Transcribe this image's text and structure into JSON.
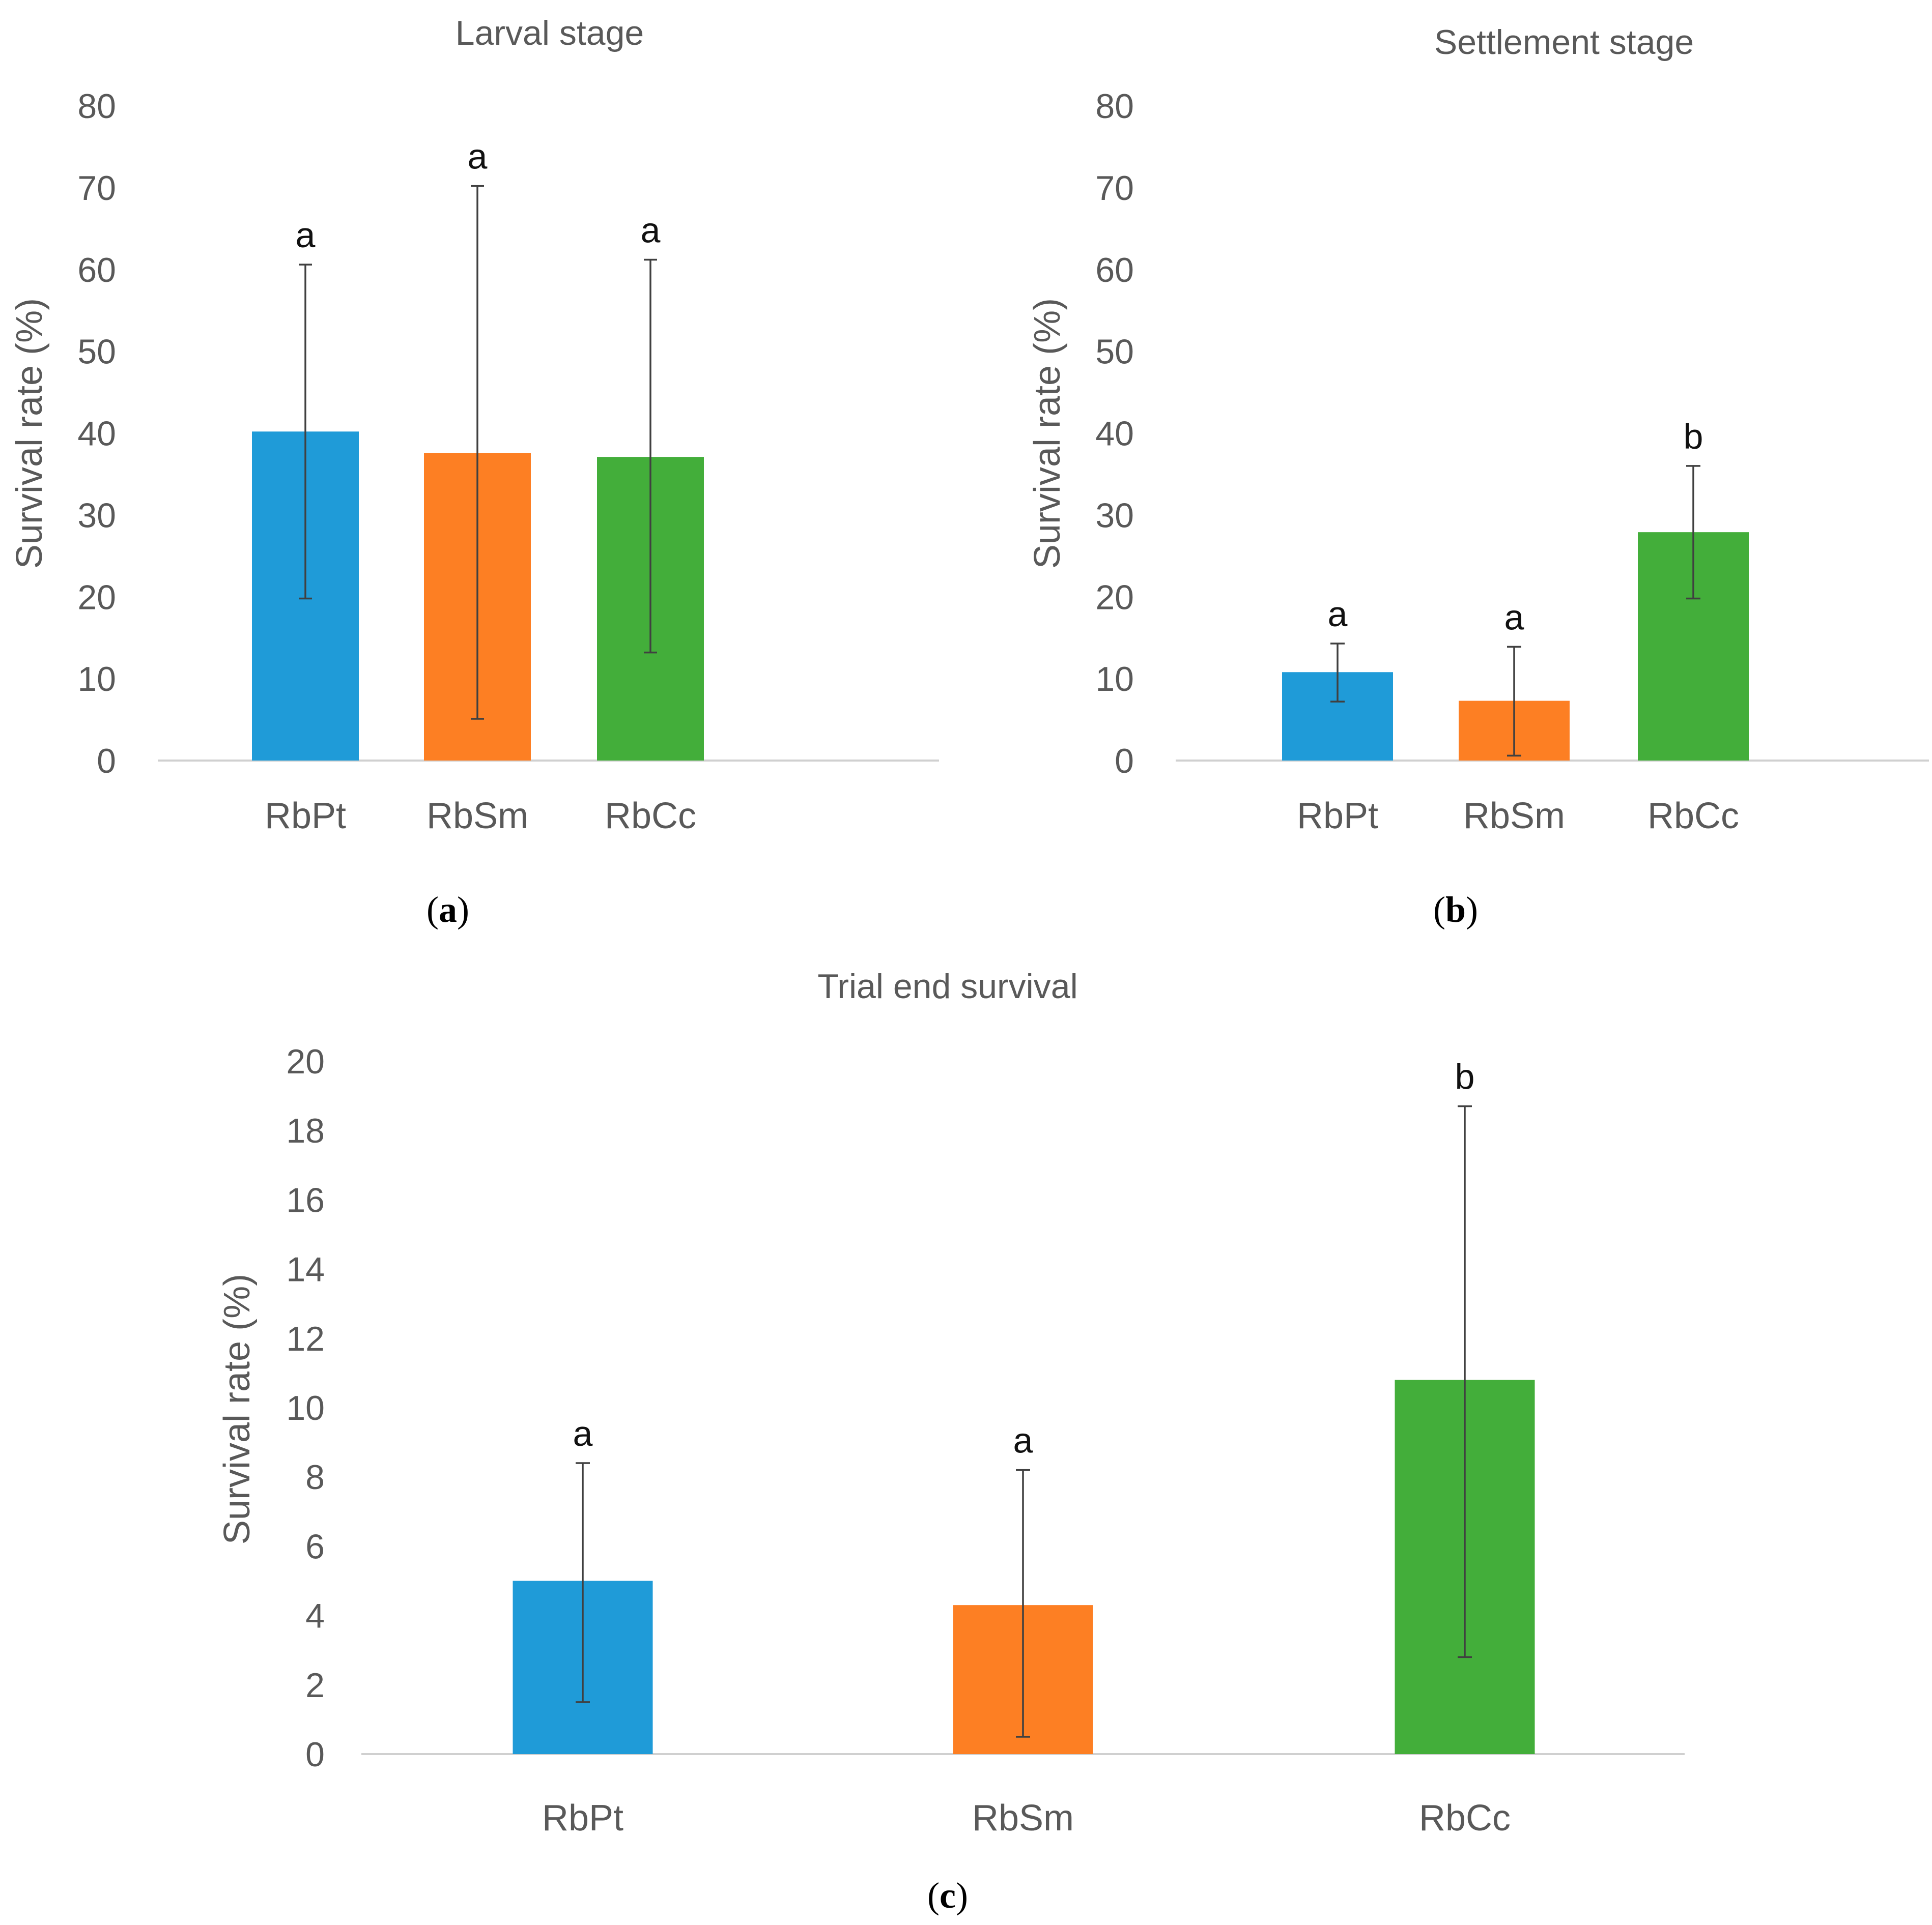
{
  "chart_data": [
    {
      "type": "bar",
      "panel_label": "a",
      "title": "Larval stage",
      "ylabel": "Survival rate (%)",
      "xlabel": "",
      "categories": [
        "RbPt",
        "RbSm",
        "RbCc"
      ],
      "values": [
        40.2,
        37.6,
        37.1
      ],
      "error_low": [
        19.8,
        5.1,
        13.2
      ],
      "error_high": [
        60.6,
        70.2,
        61.2
      ],
      "significance": [
        "a",
        "a",
        "a"
      ],
      "ylim": [
        0,
        80
      ],
      "yticks": [
        0,
        10,
        20,
        30,
        40,
        50,
        60,
        70,
        80
      ],
      "colors": [
        "#1f9bd8",
        "#fd7f23",
        "#43ae3a"
      ],
      "grid": false,
      "legend": "none"
    },
    {
      "type": "bar",
      "panel_label": "b",
      "title": "Settlement stage",
      "ylabel": "Survival rate (%)",
      "xlabel": "",
      "categories": [
        "RbPt",
        "RbSm",
        "RbCc"
      ],
      "values": [
        10.8,
        7.3,
        27.9
      ],
      "error_low": [
        7.2,
        0.6,
        19.8
      ],
      "error_high": [
        14.3,
        13.9,
        36.0
      ],
      "significance": [
        "a",
        "a",
        "b"
      ],
      "ylim": [
        0,
        80
      ],
      "yticks": [
        0,
        10,
        20,
        30,
        40,
        50,
        60,
        70,
        80
      ],
      "colors": [
        "#1f9bd8",
        "#fd7f23",
        "#43ae3a"
      ],
      "grid": false,
      "legend": "none"
    },
    {
      "type": "bar",
      "panel_label": "c",
      "title": "Trial end survival",
      "ylabel": "Survival rate (%)",
      "xlabel": "",
      "categories": [
        "RbPt",
        "RbSm",
        "RbCc"
      ],
      "values": [
        5.0,
        4.3,
        10.8
      ],
      "error_low": [
        1.5,
        0.5,
        2.8
      ],
      "error_high": [
        8.4,
        8.2,
        18.7
      ],
      "significance": [
        "a",
        "a",
        "b"
      ],
      "ylim": [
        0,
        20
      ],
      "yticks": [
        0,
        2,
        4,
        6,
        8,
        10,
        12,
        14,
        16,
        18,
        20
      ],
      "colors": [
        "#1f9bd8",
        "#fd7f23",
        "#43ae3a"
      ],
      "grid": false,
      "legend": "none"
    }
  ]
}
